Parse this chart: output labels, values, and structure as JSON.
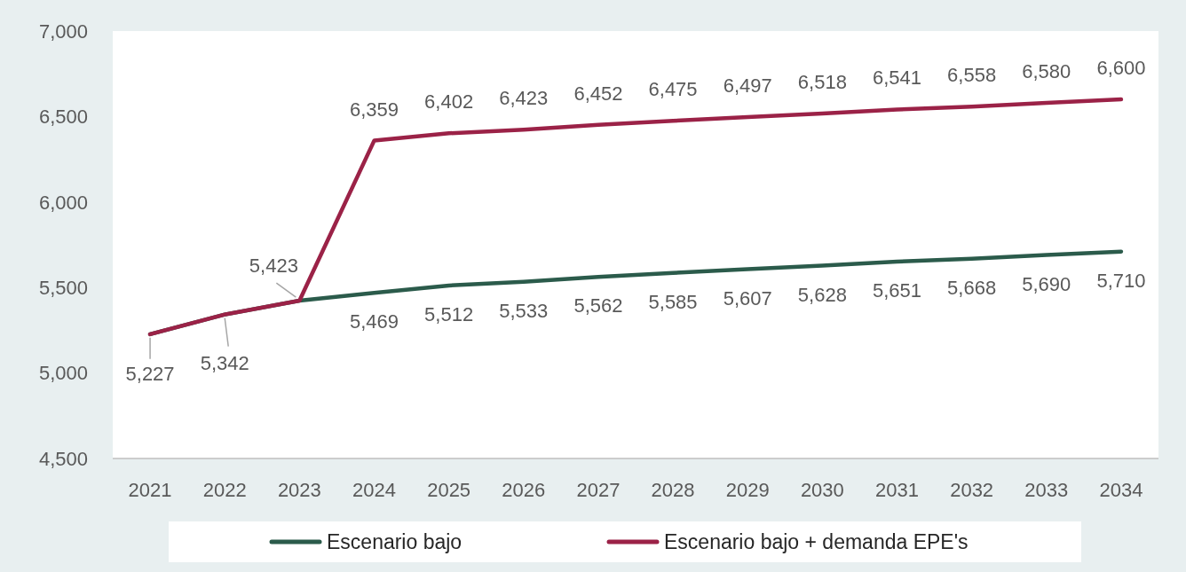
{
  "chart_data": {
    "type": "line",
    "categories": [
      "2021",
      "2022",
      "2023",
      "2024",
      "2025",
      "2026",
      "2027",
      "2028",
      "2029",
      "2030",
      "2031",
      "2032",
      "2033",
      "2034"
    ],
    "series": [
      {
        "name": "Escenario bajo",
        "color": "#2b5b4b",
        "values": [
          5227,
          5342,
          5423,
          5469,
          5512,
          5533,
          5562,
          5585,
          5607,
          5628,
          5651,
          5668,
          5690,
          5710
        ],
        "value_labels": [
          "5,227",
          "5,342",
          "5,423",
          "5,469",
          "5,512",
          "5,533",
          "5,562",
          "5,585",
          "5,607",
          "5,628",
          "5,651",
          "5,668",
          "5,690",
          "5,710"
        ]
      },
      {
        "name": "Escenario bajo + demanda EPE's",
        "color": "#9b2247",
        "values": [
          5227,
          5342,
          5423,
          6359,
          6402,
          6423,
          6452,
          6475,
          6497,
          6518,
          6541,
          6558,
          6580,
          6600
        ],
        "value_labels": [
          null,
          null,
          null,
          "6,359",
          "6,402",
          "6,423",
          "6,452",
          "6,475",
          "6,497",
          "6,518",
          "6,541",
          "6,558",
          "6,580",
          "6,600"
        ]
      }
    ],
    "ylim": [
      4500,
      7000
    ],
    "yticks": [
      {
        "value": 4500,
        "label": "4,500"
      },
      {
        "value": 5000,
        "label": "5,000"
      },
      {
        "value": 5500,
        "label": "5,500"
      },
      {
        "value": 6000,
        "label": "6,000"
      },
      {
        "value": 6500,
        "label": "6,500"
      },
      {
        "value": 7000,
        "label": "7,000"
      }
    ],
    "grid": false,
    "legend": "bottom",
    "marker": "none",
    "line_style": "solid"
  }
}
